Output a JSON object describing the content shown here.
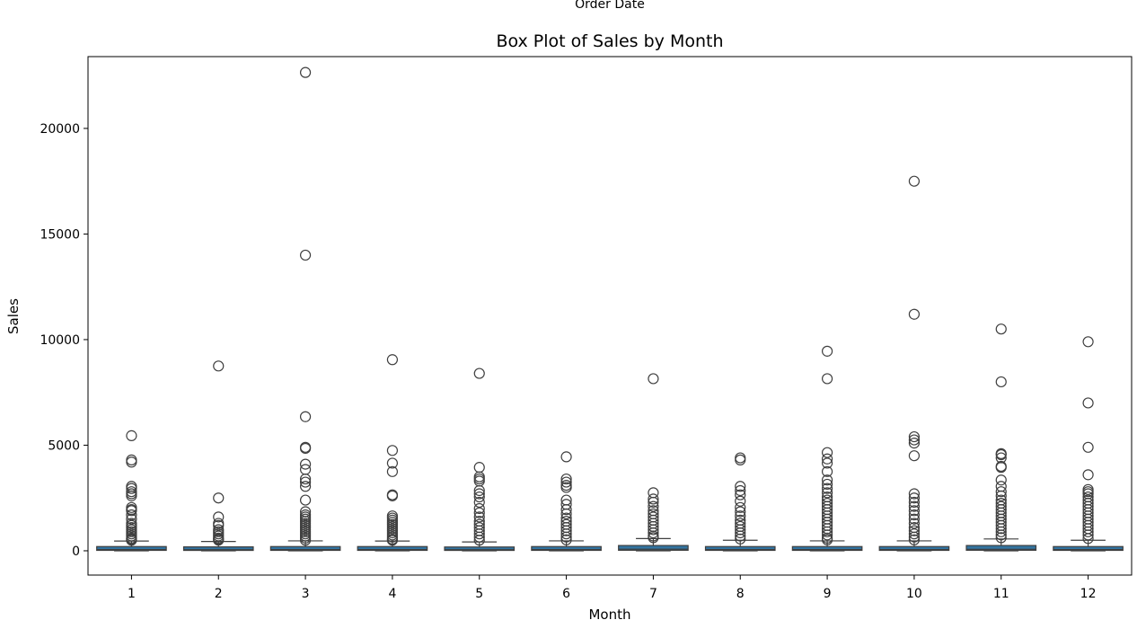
{
  "top_label": "Order Date",
  "chart_data": {
    "type": "box",
    "title": "Box Plot of Sales by Month",
    "xlabel": "Month",
    "ylabel": "Sales",
    "ylim": [
      -1150,
      23400
    ],
    "yticks": [
      0,
      5000,
      10000,
      15000,
      20000
    ],
    "grid": false,
    "box_color": "#3274a1",
    "categories": [
      "1",
      "2",
      "3",
      "4",
      "5",
      "6",
      "7",
      "8",
      "9",
      "10",
      "11",
      "12"
    ],
    "boxes": [
      {
        "month": "1",
        "whisker_low": 0,
        "q1": 20,
        "median": 60,
        "q3": 200,
        "whisker_high": 460,
        "outliers": [
          5450,
          4300,
          4200,
          3050,
          2950,
          2800,
          2700,
          2600,
          2050,
          1950,
          1900,
          1700,
          1500,
          1300,
          1200,
          1100,
          1000,
          900,
          800,
          700,
          600,
          550,
          500
        ]
      },
      {
        "month": "2",
        "whisker_low": 0,
        "q1": 18,
        "median": 55,
        "q3": 185,
        "whisker_high": 440,
        "outliers": [
          8750,
          2500,
          1600,
          1300,
          1200,
          1000,
          900,
          800,
          700,
          600,
          550,
          500
        ]
      },
      {
        "month": "3",
        "whisker_low": 0,
        "q1": 20,
        "median": 60,
        "q3": 200,
        "whisker_high": 470,
        "outliers": [
          22650,
          14000,
          6350,
          4900,
          4850,
          4100,
          3850,
          3400,
          3250,
          3050,
          2400,
          1850,
          1700,
          1600,
          1500,
          1400,
          1300,
          1200,
          1100,
          1000,
          900,
          800,
          700,
          600,
          500
        ]
      },
      {
        "month": "4",
        "whisker_low": 0,
        "q1": 20,
        "median": 60,
        "q3": 200,
        "whisker_high": 460,
        "outliers": [
          9050,
          4750,
          4150,
          3750,
          2650,
          2600,
          1650,
          1550,
          1450,
          1350,
          1250,
          1150,
          1050,
          950,
          850,
          750,
          650,
          550,
          500
        ]
      },
      {
        "month": "5",
        "whisker_low": 0,
        "q1": 18,
        "median": 55,
        "q3": 180,
        "whisker_high": 420,
        "outliers": [
          8400,
          3950,
          3500,
          3400,
          3300,
          2850,
          2700,
          2550,
          2300,
          2000,
          1800,
          1600,
          1400,
          1250,
          1100,
          950,
          800,
          650,
          500
        ]
      },
      {
        "month": "6",
        "whisker_low": 0,
        "q1": 20,
        "median": 60,
        "q3": 200,
        "whisker_high": 470,
        "outliers": [
          4450,
          3400,
          3250,
          3100,
          3000,
          2400,
          2200,
          1950,
          1750,
          1550,
          1400,
          1250,
          1100,
          950,
          800,
          650,
          520
        ]
      },
      {
        "month": "7",
        "whisker_low": 0,
        "q1": 25,
        "median": 75,
        "q3": 250,
        "whisker_high": 580,
        "outliers": [
          8150,
          2750,
          2450,
          2300,
          2100,
          1900,
          1750,
          1600,
          1450,
          1300,
          1150,
          1000,
          850,
          700,
          620
        ]
      },
      {
        "month": "8",
        "whisker_low": 0,
        "q1": 20,
        "median": 60,
        "q3": 200,
        "whisker_high": 500,
        "outliers": [
          4400,
          4300,
          3050,
          2850,
          2650,
          2350,
          2050,
          1850,
          1650,
          1450,
          1300,
          1150,
          1000,
          850,
          700,
          560
        ]
      },
      {
        "month": "9",
        "whisker_low": 0,
        "q1": 20,
        "median": 60,
        "q3": 200,
        "whisker_high": 470,
        "outliers": [
          9450,
          8150,
          4650,
          4350,
          4150,
          3750,
          3350,
          3150,
          2950,
          2750,
          2550,
          2400,
          2250,
          2100,
          1950,
          1800,
          1650,
          1500,
          1350,
          1200,
          1050,
          900,
          750,
          600,
          520
        ]
      },
      {
        "month": "10",
        "whisker_low": 0,
        "q1": 20,
        "median": 60,
        "q3": 200,
        "whisker_high": 470,
        "outliers": [
          17500,
          11200,
          5400,
          5250,
          5100,
          4500,
          2700,
          2500,
          2300,
          2100,
          1900,
          1700,
          1500,
          1300,
          1100,
          950,
          800,
          650,
          520
        ]
      },
      {
        "month": "11",
        "whisker_low": 0,
        "q1": 25,
        "median": 70,
        "q3": 250,
        "whisker_high": 560,
        "outliers": [
          10500,
          8000,
          4600,
          4550,
          4400,
          4000,
          3950,
          3350,
          3050,
          2800,
          2600,
          2400,
          2250,
          2100,
          1950,
          1800,
          1650,
          1500,
          1350,
          1200,
          1050,
          900,
          750,
          620
        ]
      },
      {
        "month": "12",
        "whisker_low": 0,
        "q1": 20,
        "median": 60,
        "q3": 200,
        "whisker_high": 500,
        "outliers": [
          9900,
          7000,
          4900,
          3600,
          2900,
          2800,
          2700,
          2550,
          2400,
          2250,
          2100,
          1950,
          1800,
          1650,
          1500,
          1350,
          1200,
          1050,
          900,
          750,
          580
        ]
      }
    ]
  }
}
